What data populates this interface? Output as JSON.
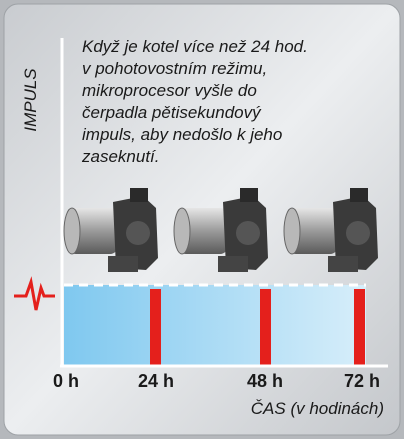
{
  "description": [
    "Když je kotel více než 24 hod.",
    "v pohotovostním režimu,",
    "mikroprocesor vyšle do",
    "čerpadla pětisekundový",
    "impuls, aby nedošlo k jeho",
    "zaseknutí."
  ],
  "y_axis_label": "IMPULS",
  "x_axis_label": "ČAS (v hodinách)",
  "x_labels": [
    "0 h",
    "24 h",
    "48 h",
    "72 h"
  ]
}
